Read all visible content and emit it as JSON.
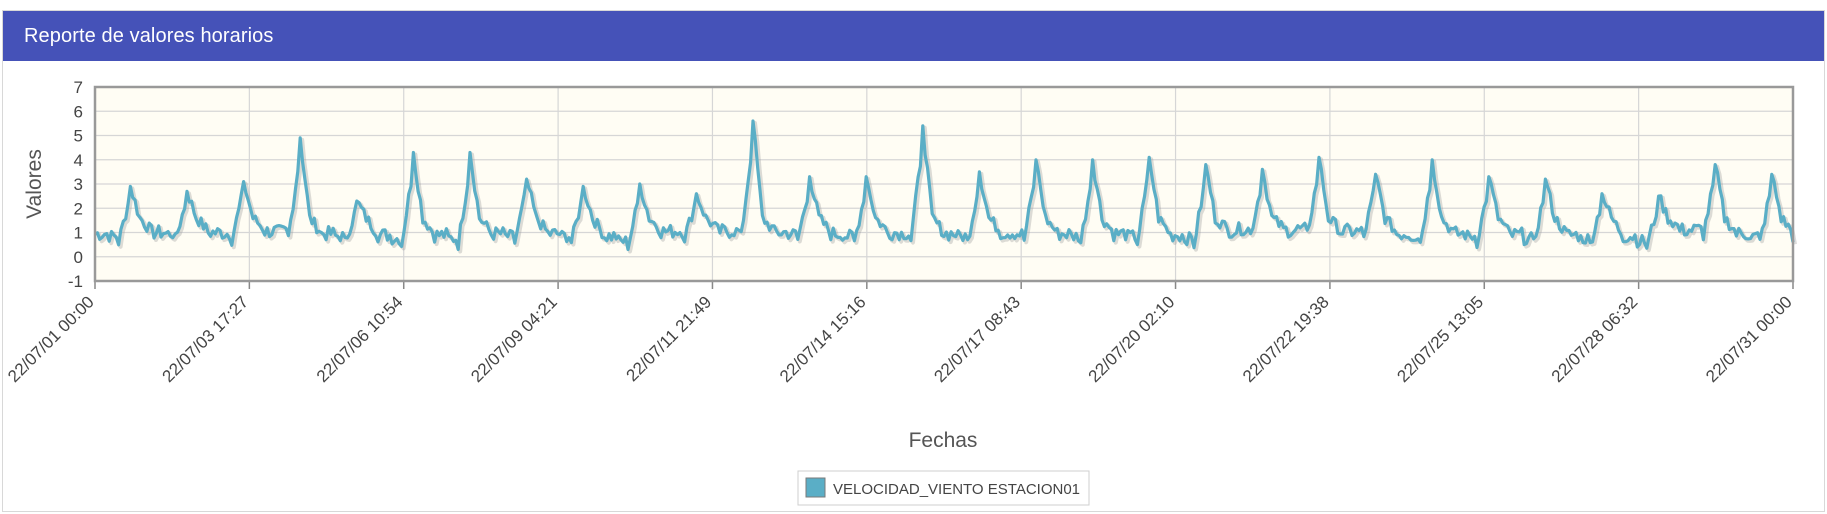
{
  "panel": {
    "title": "Reporte de valores horarios"
  },
  "chart_data": {
    "type": "line",
    "xlabel": "Fechas",
    "ylabel": "Valores",
    "ylim": [
      -1,
      7
    ],
    "yticks": [
      -1,
      0,
      1,
      2,
      3,
      4,
      5,
      6,
      7
    ],
    "xlim": [
      "2022-07-01 00:00",
      "2022-07-31 00:00"
    ],
    "xtick_labels": [
      "22/07/01 00:00",
      "22/07/03 17:27",
      "22/07/06 10:54",
      "22/07/09 04:21",
      "22/07/11 21:49",
      "22/07/14 15:16",
      "22/07/17 08:43",
      "22/07/20 02:10",
      "22/07/22 19:38",
      "22/07/25 13:05",
      "22/07/28 06:32",
      "22/07/31 00:00"
    ],
    "grid": true,
    "legend_position": "bottom-center",
    "colors": {
      "line": "#5aaec6",
      "shadow": "#9a9a9a",
      "plot_bg": "#fffdf4",
      "grid": "#d6d6d6",
      "frame": "#999999"
    },
    "series": [
      {
        "name": "VELOCIDAD_VIENTO ESTACION01",
        "daily_peaks": [
          2.9,
          2.7,
          3.1,
          4.9,
          2.3,
          4.3,
          4.3,
          3.2,
          2.9,
          3.0,
          2.6,
          5.6,
          3.3,
          3.3,
          5.4,
          3.5,
          4.0,
          4.0,
          4.1,
          3.8,
          3.6,
          4.1,
          3.4,
          4.0,
          3.3,
          3.2,
          2.6,
          2.5,
          3.8,
          3.4
        ],
        "daily_lows": [
          0.6,
          0.7,
          0.7,
          0.8,
          0.6,
          0.5,
          0.5,
          0.6,
          0.6,
          0.4,
          0.8,
          0.8,
          0.7,
          0.6,
          0.7,
          0.6,
          0.7,
          0.6,
          0.6,
          0.5,
          0.9,
          0.9,
          0.8,
          0.6,
          0.6,
          0.5,
          0.5,
          0.4,
          0.9,
          0.6
        ]
      }
    ]
  }
}
